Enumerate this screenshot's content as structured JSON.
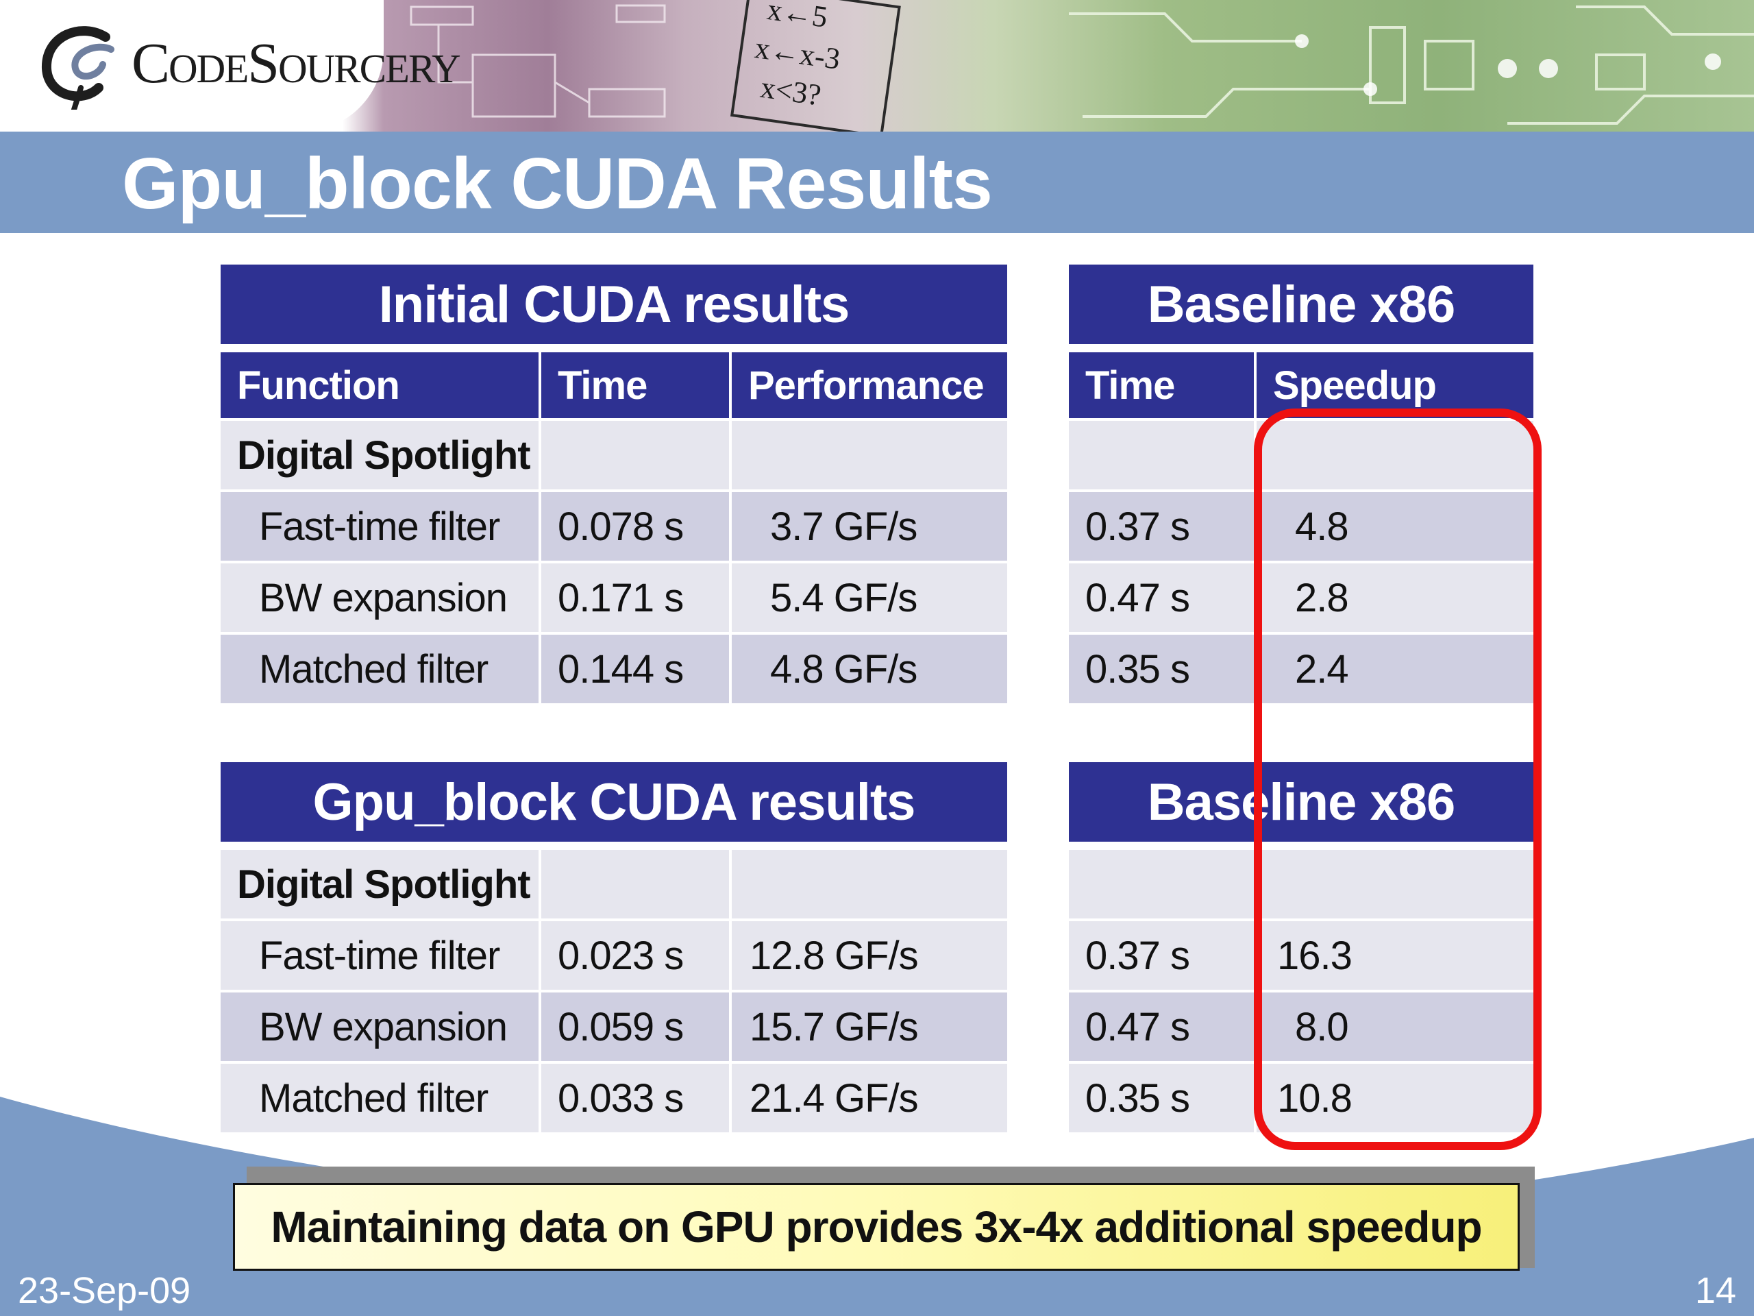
{
  "brand": {
    "name": "CodeSourcery"
  },
  "banner_art": {
    "code_snippets": [
      "x←5",
      "x←x-3",
      "x<3?"
    ]
  },
  "slide_title": "Gpu_block CUDA Results",
  "initial": {
    "caption": "Initial CUDA results",
    "headers": [
      "Function",
      "Time",
      "Performance"
    ],
    "section": "Digital Spotlight",
    "rows": [
      {
        "function": "Fast-time filter",
        "time": "0.078 s",
        "performance": "3.7 GF/s"
      },
      {
        "function": "BW expansion",
        "time": "0.171 s",
        "performance": "5.4 GF/s"
      },
      {
        "function": "Matched filter",
        "time": "0.144 s",
        "performance": "4.8 GF/s"
      }
    ]
  },
  "baseline1": {
    "caption": "Baseline x86",
    "headers": [
      "Time",
      "Speedup"
    ],
    "rows": [
      {
        "time": "0.37 s",
        "speedup": "4.8"
      },
      {
        "time": "0.47 s",
        "speedup": "2.8"
      },
      {
        "time": "0.35 s",
        "speedup": "2.4"
      }
    ]
  },
  "gpublock": {
    "caption": "Gpu_block CUDA results",
    "section": "Digital Spotlight",
    "rows": [
      {
        "function": "Fast-time filter",
        "time": "0.023 s",
        "performance": "12.8 GF/s"
      },
      {
        "function": "BW expansion",
        "time": "0.059 s",
        "performance": "15.7 GF/s"
      },
      {
        "function": "Matched filter",
        "time": "0.033 s",
        "performance": "21.4 GF/s"
      }
    ]
  },
  "baseline2": {
    "caption": "Baseline x86",
    "rows": [
      {
        "time": "0.37 s",
        "speedup": "16.3"
      },
      {
        "time": "0.47 s",
        "speedup": "8.0"
      },
      {
        "time": "0.35 s",
        "speedup": "10.8"
      }
    ]
  },
  "callout": "Maintaining data on GPU provides 3x-4x additional speedup",
  "footer": {
    "date": "23-Sep-09",
    "page": "14"
  },
  "colors": {
    "title_bar": "#7b9bc6",
    "table_header": "#2e3192",
    "row_light": "#e6e6ee",
    "row_dark": "#cfcfe1",
    "highlight": "#ee1111"
  }
}
